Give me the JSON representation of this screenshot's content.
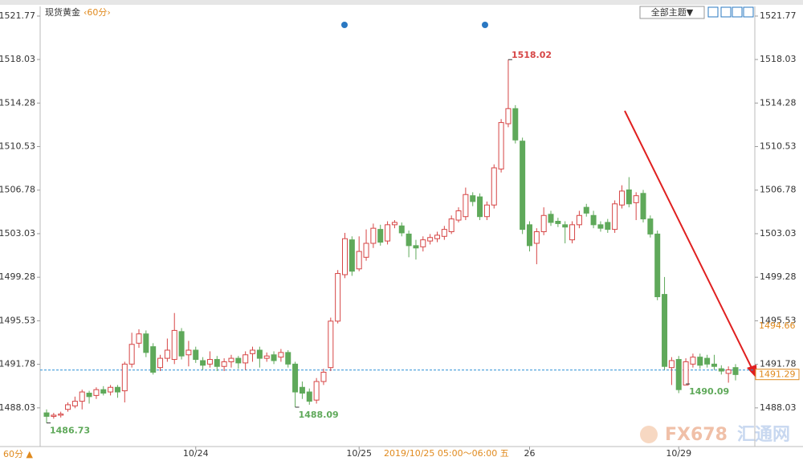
{
  "chart_data": {
    "type": "candlestick",
    "title": "现货黄金",
    "period": "‹60分›",
    "theme_button": "全部主题▼",
    "period_button": "60分 ▲",
    "crosshair_label": "2019/10/25 05:00～06:00 五",
    "watermark": [
      "FX678",
      "汇通网"
    ],
    "up_color": "#d64545",
    "down_color": "#5fa95a",
    "ylim": [
      1484.7,
      1522.6
    ],
    "yticks": [
      1488.03,
      1491.78,
      1495.53,
      1499.28,
      1503.03,
      1506.78,
      1510.53,
      1514.28,
      1518.03,
      1521.77
    ],
    "last_price": 1491.29,
    "ref_price": 1494.66,
    "categories": [
      null,
      null,
      null,
      null,
      null,
      null,
      null,
      null,
      null,
      null,
      null,
      null,
      null,
      null,
      null,
      null,
      null,
      null,
      null,
      null,
      null,
      "10/24",
      null,
      null,
      null,
      null,
      null,
      null,
      null,
      null,
      null,
      null,
      null,
      null,
      null,
      null,
      null,
      null,
      null,
      null,
      null,
      null,
      null,
      null,
      "10/25",
      null,
      null,
      null,
      null,
      null,
      null,
      null,
      null,
      null,
      null,
      null,
      null,
      null,
      null,
      null,
      null,
      null,
      null,
      null,
      null,
      null,
      null,
      null,
      "26",
      null,
      null,
      null,
      null,
      null,
      null,
      null,
      null,
      null,
      null,
      null,
      null,
      null,
      null,
      null,
      null,
      null,
      null,
      null,
      null,
      "10/29",
      null,
      null,
      null,
      null,
      null,
      null,
      null,
      null
    ],
    "open": [
      1487.6,
      1487.3,
      1487.4,
      1487.9,
      1488.2,
      1488.6,
      1489.3,
      1489.1,
      1489.6,
      1489.4,
      1489.8,
      1489.5,
      1491.8,
      1493.6,
      1494.4,
      1493.3,
      1491.5,
      1492.3,
      1492.2,
      1494.6,
      1492.6,
      1493.0,
      1492.1,
      1491.8,
      1492.2,
      1491.6,
      1492.0,
      1492.3,
      1491.9,
      1492.7,
      1493.0,
      1492.3,
      1492.6,
      1492.4,
      1492.8,
      1491.8,
      1489.8,
      1489.4,
      1488.7,
      1490.3,
      1491.5,
      1495.5,
      1499.5,
      1502.5,
      1500.0,
      1501.0,
      1502.2,
      1503.4,
      1502.4,
      1503.8,
      1503.7,
      1503.0,
      1502.0,
      1501.9,
      1502.4,
      1502.6,
      1502.8,
      1503.2,
      1504.2,
      1504.5,
      1506.3,
      1506.2,
      1504.5,
      1505.5,
      1508.6,
      1512.5,
      1513.8,
      1511.0,
      1503.8,
      1502.2,
      1503.2,
      1504.7,
      1504.1,
      1503.8,
      1502.5,
      1503.8,
      1505.3,
      1504.6,
      1503.8,
      1504.0,
      1503.4,
      1505.5,
      1506.8,
      1505.7,
      1506.5,
      1504.3,
      1503.0,
      1497.8,
      1491.5,
      1492.2,
      1490.0,
      1491.8,
      1492.4,
      1492.3,
      1491.8,
      1491.4,
      1491.0,
      1491.5
    ],
    "high": [
      1487.9,
      1487.6,
      1487.7,
      1488.5,
      1489.0,
      1489.6,
      1489.5,
      1489.8,
      1489.9,
      1490.0,
      1490.0,
      1492.0,
      1494.5,
      1494.8,
      1494.7,
      1493.6,
      1492.6,
      1494.0,
      1496.2,
      1494.9,
      1493.8,
      1493.3,
      1492.4,
      1492.9,
      1492.5,
      1492.3,
      1492.6,
      1492.5,
      1492.9,
      1493.3,
      1493.3,
      1492.8,
      1492.9,
      1493.1,
      1493.0,
      1492.0,
      1490.3,
      1489.7,
      1490.6,
      1491.4,
      1495.8,
      1499.9,
      1503.1,
      1502.8,
      1502.8,
      1503.4,
      1503.9,
      1503.8,
      1504.1,
      1504.2,
      1504.0,
      1503.3,
      1502.5,
      1502.8,
      1503.0,
      1503.2,
      1503.7,
      1504.6,
      1505.3,
      1507.0,
      1506.6,
      1506.5,
      1505.8,
      1509.0,
      1512.9,
      1518.02,
      1514.1,
      1511.3,
      1504.1,
      1503.5,
      1505.3,
      1505.0,
      1504.4,
      1504.1,
      1504.1,
      1505.0,
      1505.6,
      1505.0,
      1504.1,
      1504.3,
      1505.9,
      1507.2,
      1507.9,
      1506.6,
      1506.8,
      1504.6,
      1503.3,
      1499.3,
      1492.4,
      1492.5,
      1492.3,
      1492.7,
      1492.7,
      1492.6,
      1492.6,
      1491.7,
      1491.6,
      1491.8
    ],
    "low": [
      1486.73,
      1487.1,
      1487.2,
      1487.7,
      1488.0,
      1487.9,
      1488.4,
      1488.8,
      1489.1,
      1489.1,
      1488.9,
      1488.5,
      1491.5,
      1493.2,
      1492.4,
      1490.9,
      1491.2,
      1492.0,
      1491.8,
      1492.2,
      1491.6,
      1491.9,
      1491.3,
      1491.5,
      1491.2,
      1491.2,
      1491.5,
      1491.4,
      1491.3,
      1492.0,
      1491.5,
      1492.0,
      1491.8,
      1492.0,
      1491.5,
      1488.09,
      1488.8,
      1488.3,
      1488.4,
      1490.0,
      1491.2,
      1495.3,
      1499.2,
      1499.4,
      1499.8,
      1500.7,
      1501.8,
      1502.0,
      1502.1,
      1503.5,
      1502.8,
      1501.0,
      1500.8,
      1501.5,
      1502.1,
      1502.3,
      1502.5,
      1503.0,
      1504.0,
      1504.2,
      1505.4,
      1504.2,
      1504.2,
      1505.2,
      1508.3,
      1512.2,
      1510.8,
      1503.0,
      1501.5,
      1500.4,
      1502.9,
      1503.7,
      1503.6,
      1502.2,
      1502.2,
      1503.5,
      1504.5,
      1503.5,
      1503.2,
      1503.1,
      1503.1,
      1505.2,
      1505.3,
      1504.2,
      1504.0,
      1502.7,
      1497.3,
      1491.3,
      1490.0,
      1489.3,
      1490.09,
      1491.5,
      1491.4,
      1491.5,
      1491.3,
      1490.9,
      1490.2,
      1490.4
    ],
    "close": [
      1487.3,
      1487.4,
      1487.5,
      1488.3,
      1488.6,
      1489.4,
      1489.0,
      1489.6,
      1489.3,
      1489.8,
      1489.4,
      1491.8,
      1493.5,
      1494.4,
      1492.8,
      1491.1,
      1492.3,
      1493.0,
      1494.7,
      1492.5,
      1493.0,
      1492.2,
      1491.7,
      1492.2,
      1491.6,
      1492.0,
      1492.3,
      1491.9,
      1492.6,
      1493.0,
      1492.3,
      1492.5,
      1492.1,
      1492.8,
      1491.8,
      1489.4,
      1489.3,
      1488.6,
      1490.3,
      1491.1,
      1495.5,
      1499.6,
      1502.6,
      1499.8,
      1501.5,
      1502.2,
      1503.5,
      1502.3,
      1503.8,
      1504.0,
      1503.1,
      1502.0,
      1501.8,
      1502.5,
      1502.7,
      1502.9,
      1503.4,
      1504.3,
      1505.0,
      1506.4,
      1505.8,
      1504.5,
      1505.5,
      1508.7,
      1512.6,
      1513.8,
      1511.1,
      1503.4,
      1502.0,
      1503.2,
      1504.6,
      1504.0,
      1503.9,
      1503.6,
      1503.8,
      1504.6,
      1504.8,
      1503.8,
      1503.5,
      1503.4,
      1505.6,
      1506.7,
      1505.6,
      1506.3,
      1504.3,
      1503.0,
      1497.6,
      1491.6,
      1492.1,
      1489.6,
      1492.0,
      1492.4,
      1491.7,
      1491.8,
      1491.6,
      1491.2,
      1491.3,
      1490.9
    ]
  }
}
